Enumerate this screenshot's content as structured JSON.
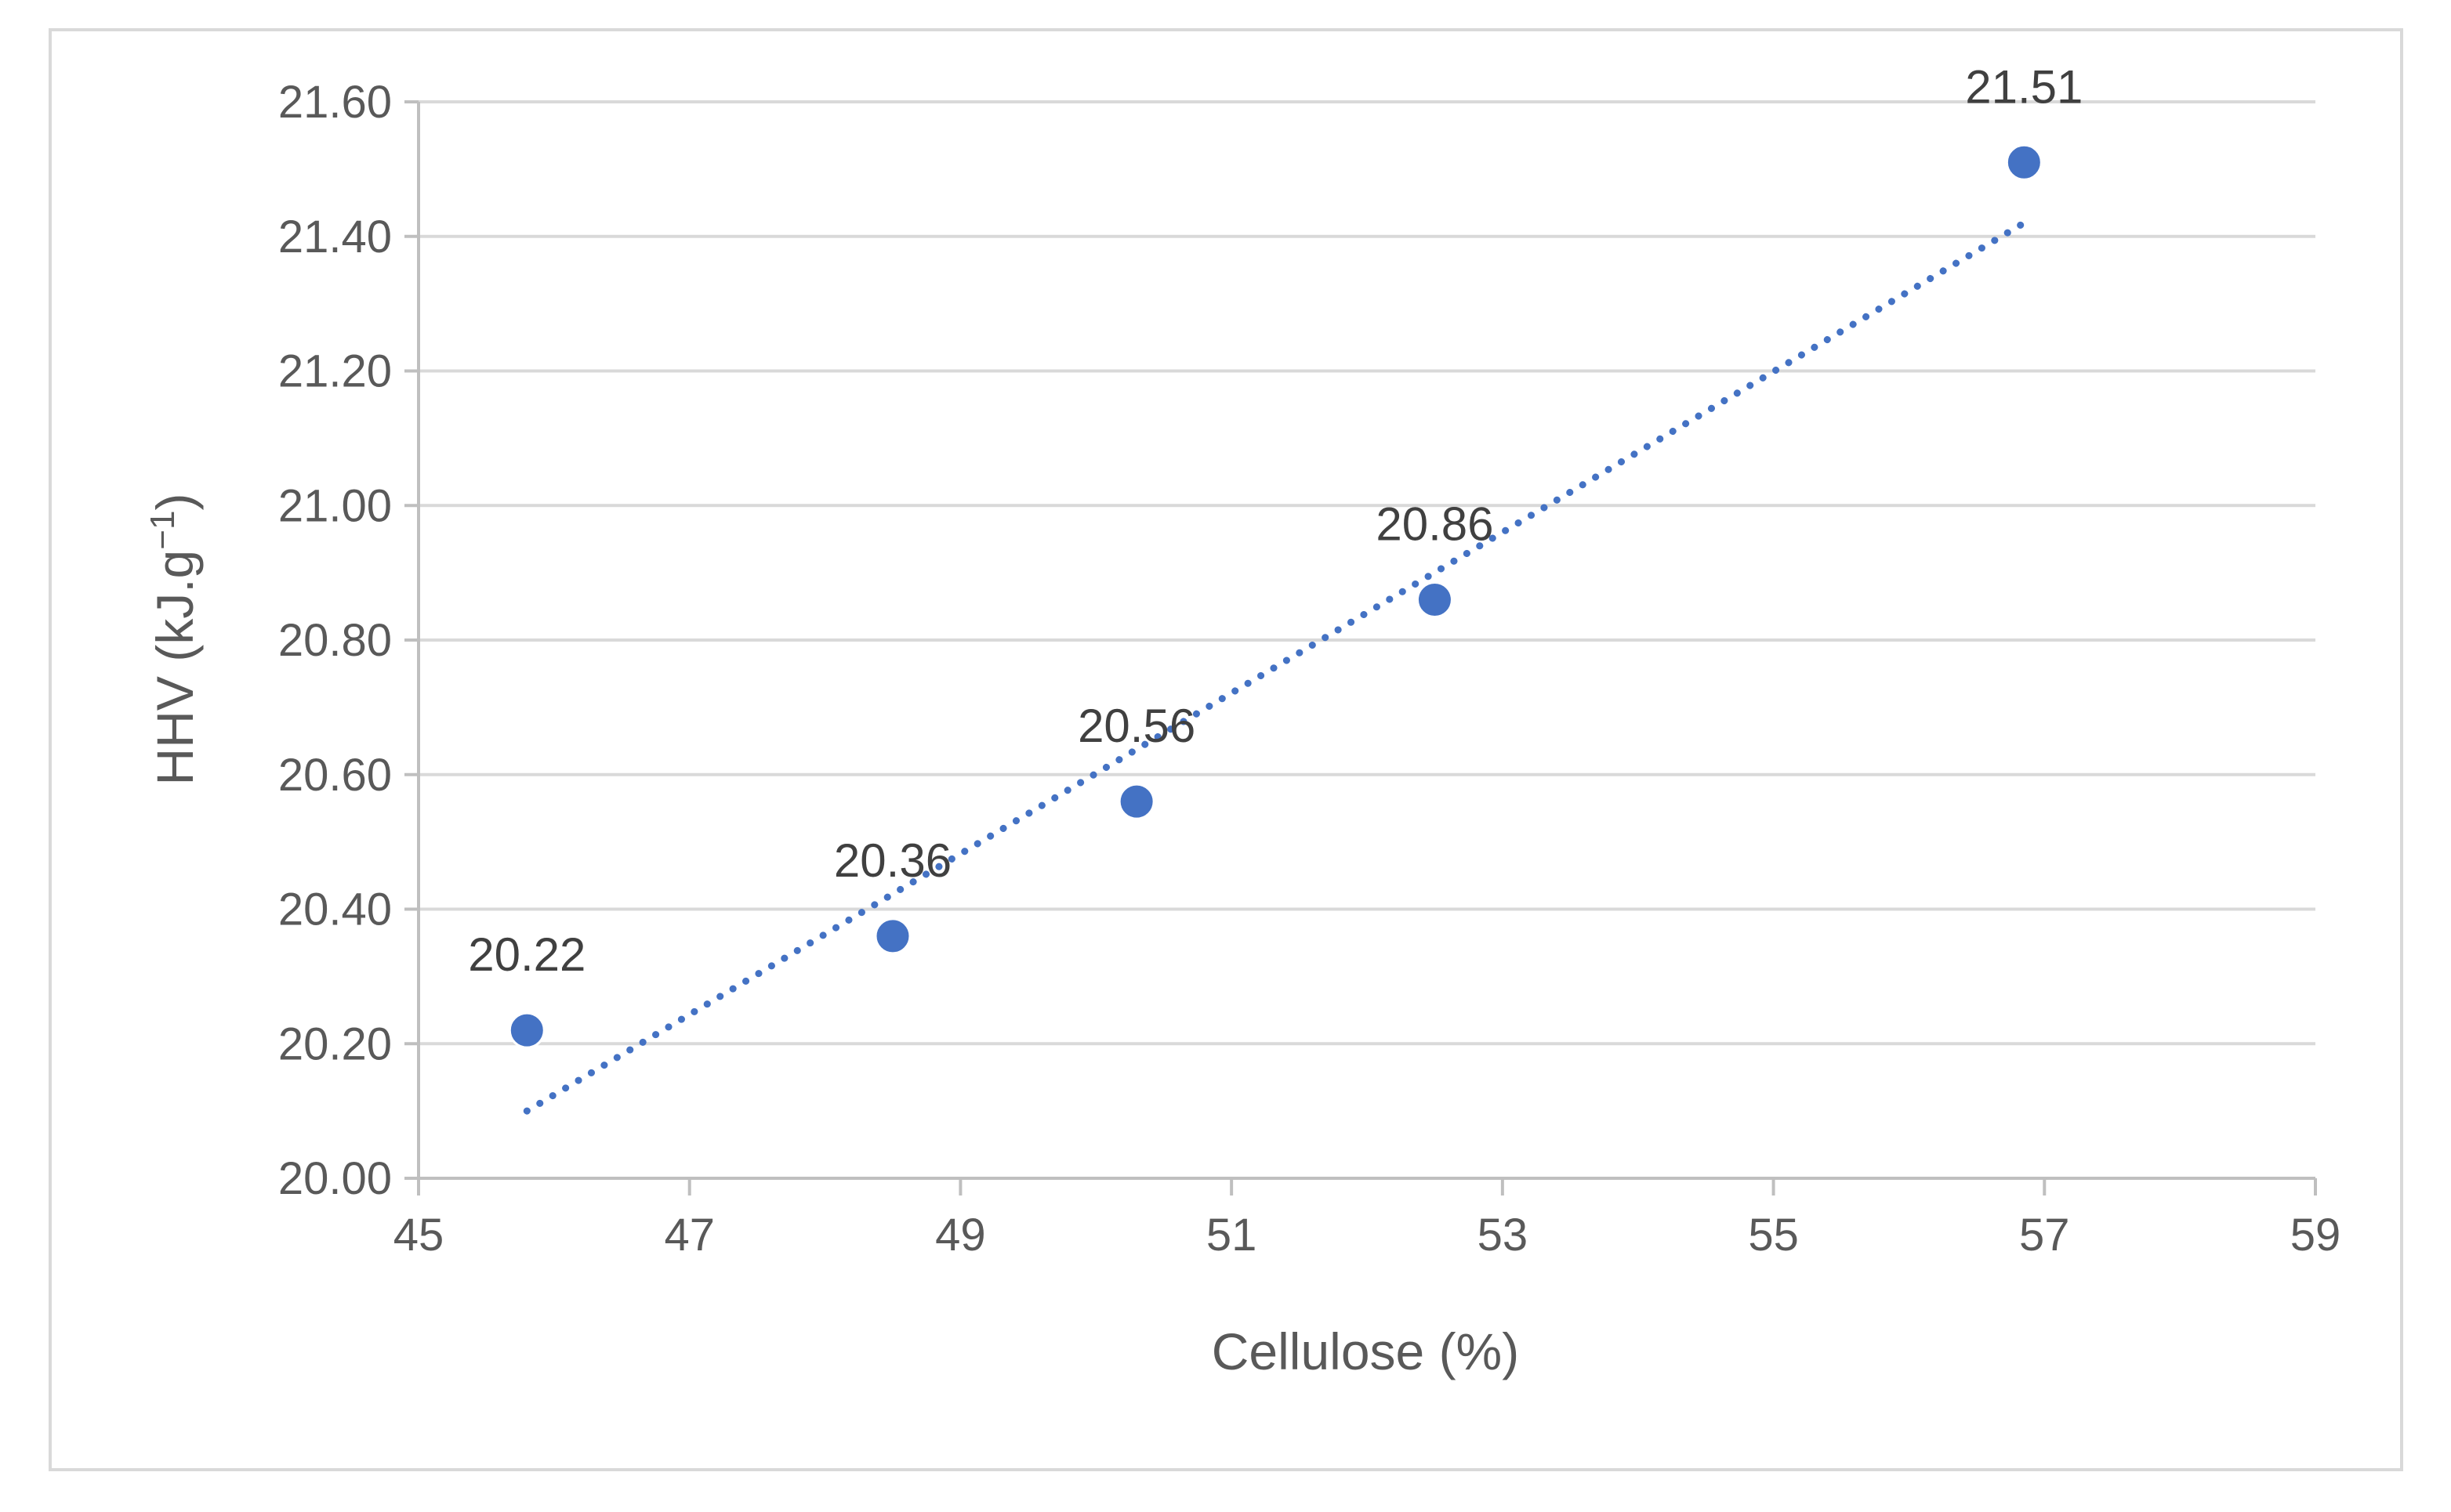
{
  "chart_data": {
    "type": "scatter",
    "title": "",
    "xlabel": "Cellulose (%)",
    "ylabel_main": "HHV (kJ.g",
    "ylabel_sup": "−1",
    "ylabel_end": ")",
    "xlim": [
      45,
      59
    ],
    "ylim": [
      20.0,
      21.6
    ],
    "x_ticks": [
      "45",
      "47",
      "49",
      "51",
      "53",
      "55",
      "57",
      "59"
    ],
    "y_ticks": [
      "20.00",
      "20.20",
      "20.40",
      "20.60",
      "20.80",
      "21.00",
      "21.20",
      "21.40",
      "21.60"
    ],
    "grid": "horizontal",
    "legend": "none",
    "series": [
      {
        "x": [
          45.8,
          48.5,
          50.3,
          52.5,
          56.85
        ],
        "y": [
          20.22,
          20.36,
          20.56,
          20.86,
          21.51
        ],
        "labels": [
          "20.22",
          "20.36",
          "20.56",
          "20.86",
          "21.51"
        ],
        "color": "#4472c4"
      }
    ],
    "trendline": {
      "type": "linear",
      "style": "dotted",
      "color": "#4472c4",
      "x_start": 45.8,
      "x_end": 56.85,
      "y_start": 20.1,
      "y_end": 21.42
    },
    "colors": {
      "gridline": "#d9d9d9",
      "axis": "#bfbfbf",
      "text": "#595959",
      "data_label": "#404040"
    }
  }
}
